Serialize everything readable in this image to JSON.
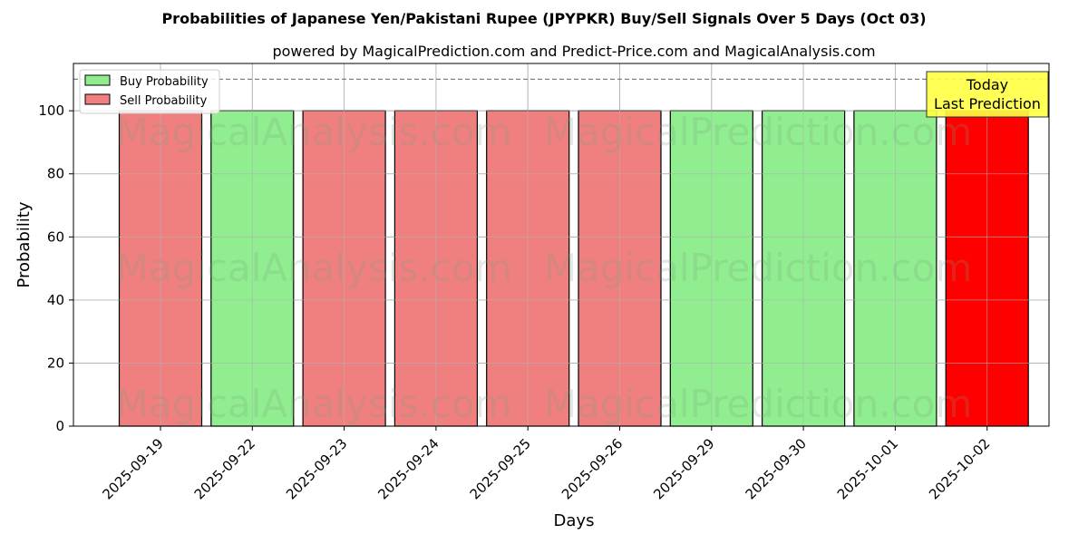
{
  "chart_data": {
    "type": "bar",
    "title": "Probabilities of Japanese Yen/Pakistani Rupee (JPYPKR) Buy/Sell Signals Over 5 Days (Oct 03)",
    "subtitle": "powered by MagicalPrediction.com and Predict-Price.com and MagicalAnalysis.com",
    "xlabel": "Days",
    "ylabel": "Probability",
    "ylim": [
      0,
      115
    ],
    "yticks": [
      0,
      20,
      40,
      60,
      80,
      100
    ],
    "grid": true,
    "legend_position": "top-left",
    "threshold_line": 110,
    "categories": [
      "2025-09-19",
      "2025-09-22",
      "2025-09-23",
      "2025-09-24",
      "2025-09-25",
      "2025-09-26",
      "2025-09-29",
      "2025-09-30",
      "2025-10-01",
      "2025-10-02"
    ],
    "values": [
      100,
      100,
      100,
      100,
      100,
      100,
      100,
      100,
      100,
      100
    ],
    "signals": [
      "sell",
      "buy",
      "sell",
      "sell",
      "sell",
      "sell",
      "buy",
      "buy",
      "buy",
      "sell-today"
    ],
    "series": [
      {
        "name": "Buy Probability",
        "color": "#90ee90"
      },
      {
        "name": "Sell Probability",
        "color": "#f08080"
      }
    ],
    "today_color": "#ff0000",
    "annotation": {
      "line1": "Today",
      "line2": "Last Prediction",
      "color": "#ffff44"
    },
    "watermarks": [
      "MagicalAnalysis.com",
      "MagicalPrediction.com"
    ]
  }
}
